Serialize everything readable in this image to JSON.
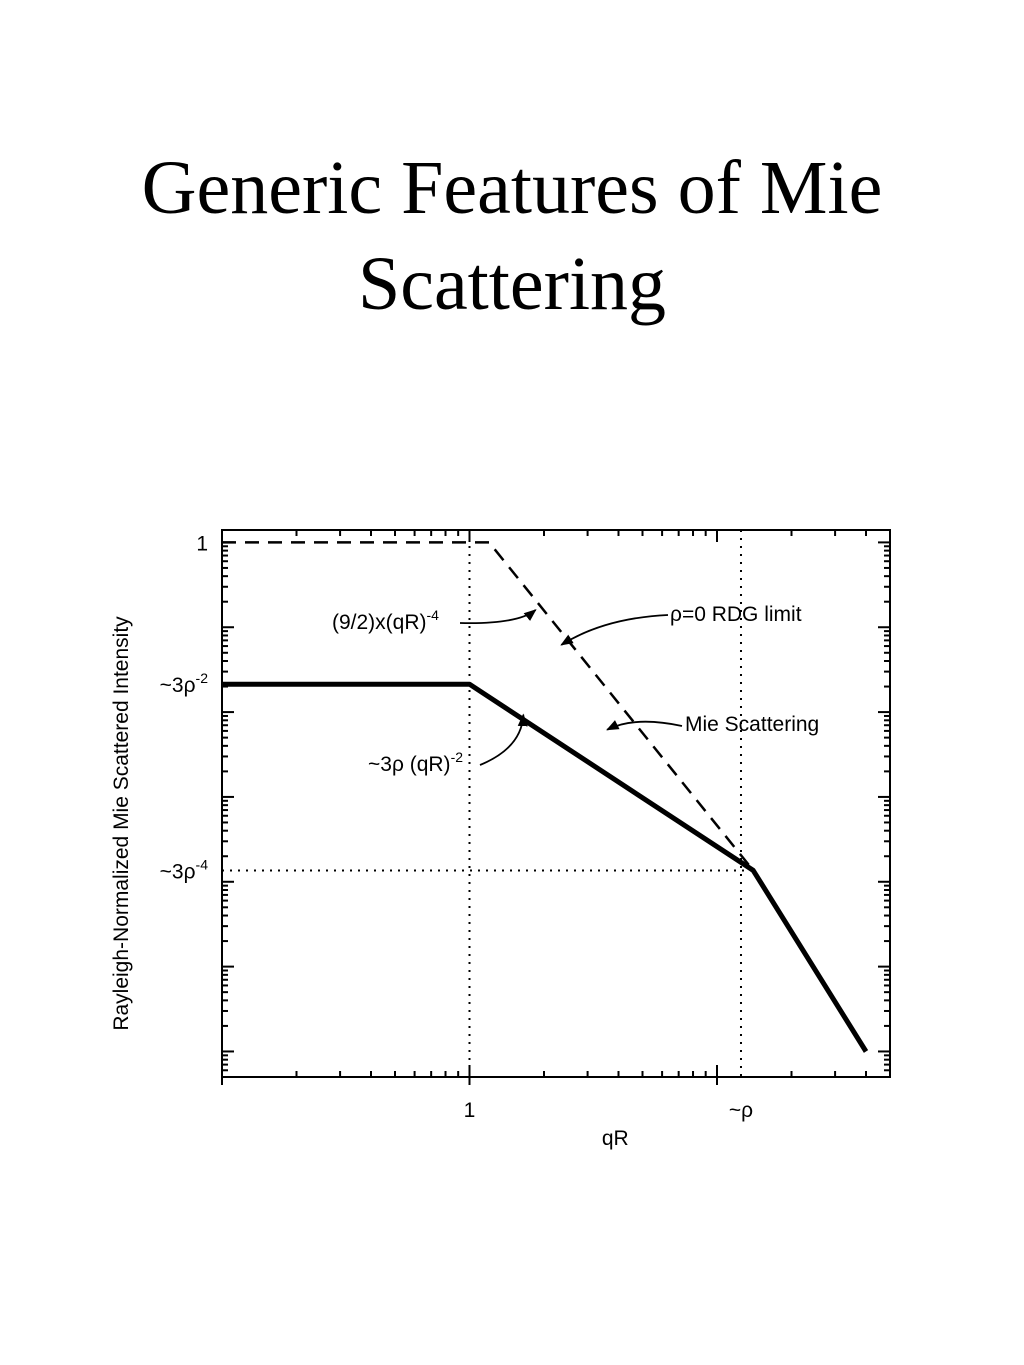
{
  "slide": {
    "title_line1": "Generic Features of Mie",
    "title_line2": "Scattering"
  },
  "chart_data": {
    "type": "line",
    "xlabel": "qR",
    "ylabel": "Rayleigh-Normalized Mie Scattered Intensity",
    "x_scale": "log",
    "y_scale": "log",
    "x_tick_labels": [
      {
        "value": 1,
        "label": "1"
      },
      {
        "value": 12.5,
        "label": "~ρ"
      }
    ],
    "y_tick_labels": [
      {
        "value": 1,
        "label": "1",
        "base": "1",
        "sup": ""
      },
      {
        "value": 0.0213,
        "label": "~3ρ^-2",
        "base": "~3ρ",
        "sup": "-2"
      },
      {
        "value": 0.000136,
        "label": "~3ρ^-4",
        "base": "~3ρ",
        "sup": "-4"
      }
    ],
    "xlim": [
      0.1,
      50
    ],
    "ylim": [
      5e-07,
      1.4
    ],
    "series": [
      {
        "name": "Mie Scattering",
        "style": "solid-thick",
        "x": [
          0.1,
          1,
          14,
          40
        ],
        "y": [
          0.0213,
          0.0213,
          0.000136,
          1e-06
        ]
      },
      {
        "name": "ρ=0 RDG limit",
        "style": "dashed",
        "x": [
          0.1,
          1.2,
          14
        ],
        "y": [
          1,
          1,
          0.000136
        ]
      }
    ],
    "reference_lines": [
      {
        "axis": "x",
        "value": 1
      },
      {
        "axis": "x",
        "value": 12.5
      },
      {
        "axis": "y",
        "value": 0.000136
      }
    ],
    "annotations": [
      {
        "id": "rdg",
        "text": "ρ=0 RDG limit",
        "sup": "",
        "tail": "",
        "x": 2.35,
        "y": 0.062
      },
      {
        "id": "nine_halves",
        "text": "(9/2)x(qR)",
        "sup": "-4",
        "tail": "",
        "x": 1.85,
        "y": 0.16
      },
      {
        "id": "mie",
        "text": "Mie Scattering",
        "sup": "",
        "tail": "",
        "x": 3.6,
        "y": 0.0062
      },
      {
        "id": "three_rho",
        "text": "~3ρ (qR)",
        "sup": "-2",
        "tail": "",
        "x": 1.65,
        "y": 0.0093
      }
    ],
    "grid": false,
    "legend": "none"
  }
}
